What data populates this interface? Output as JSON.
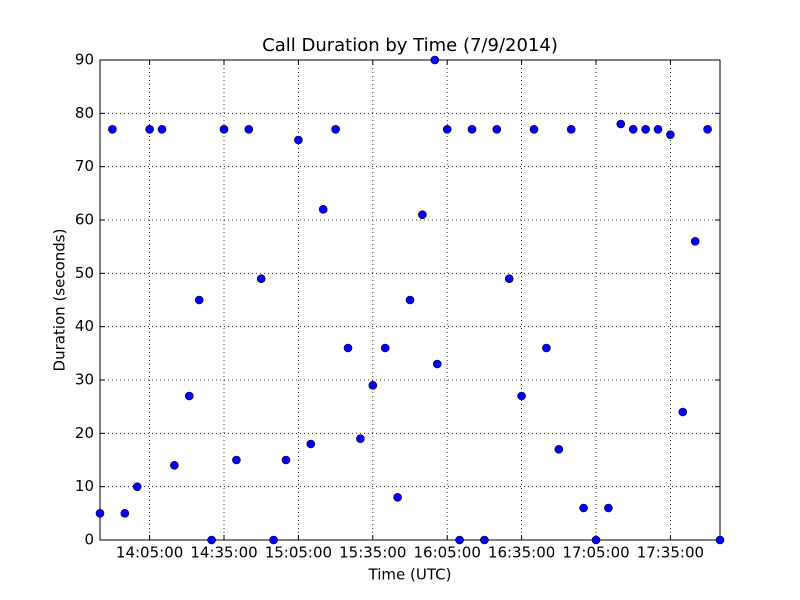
{
  "chart_data": {
    "type": "scatter",
    "title": "Call Duration by Time (7/9/2014)",
    "x_label": "Time (UTC)",
    "y_label": "Duration (seconds)",
    "x": [
      825,
      830,
      835,
      840,
      845,
      850,
      855,
      861,
      865,
      870,
      875,
      880,
      885,
      890,
      895,
      900,
      905,
      910,
      915,
      920,
      925,
      930,
      935,
      940,
      945,
      950,
      955,
      960,
      961,
      965,
      970,
      975,
      980,
      985,
      990,
      995,
      1000,
      1005,
      1010,
      1015,
      1020,
      1025,
      1030,
      1035,
      1040,
      1045,
      1050,
      1055,
      1060,
      1065,
      1070,
      1075
    ],
    "values": [
      5,
      77,
      5,
      10,
      77,
      77,
      14,
      27,
      45,
      0,
      77,
      15,
      77,
      49,
      0,
      15,
      75,
      18,
      62,
      77,
      36,
      19,
      29,
      36,
      8,
      45,
      61,
      90,
      33,
      77,
      0,
      77,
      0,
      77,
      49,
      27,
      77,
      36,
      17,
      77,
      6,
      0,
      6,
      78,
      77,
      77,
      77,
      76,
      24,
      56,
      77,
      0
    ],
    "color": "#0000ff",
    "xlim": [
      825,
      1075
    ],
    "xticks": [
      {
        "value": 845,
        "label": "14:05:00"
      },
      {
        "value": 875,
        "label": "14:35:00"
      },
      {
        "value": 905,
        "label": "15:05:00"
      },
      {
        "value": 935,
        "label": "15:35:00"
      },
      {
        "value": 965,
        "label": "16:05:00"
      },
      {
        "value": 995,
        "label": "16:35:00"
      },
      {
        "value": 1025,
        "label": "17:05:00"
      },
      {
        "value": 1055,
        "label": "17:35:00"
      }
    ],
    "ylim": [
      0,
      90
    ],
    "yticks": [
      0,
      10,
      20,
      30,
      40,
      50,
      60,
      70,
      80,
      90
    ],
    "grid": true
  }
}
